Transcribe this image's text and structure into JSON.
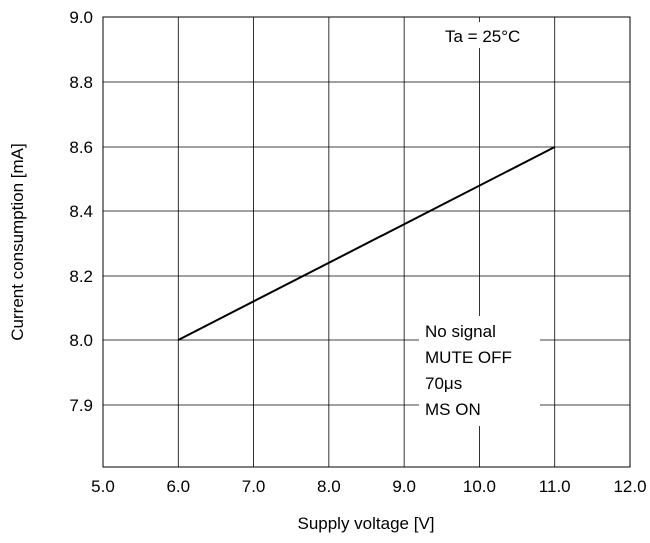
{
  "chart_data": {
    "type": "line",
    "xlabel": "Supply voltage [V]",
    "ylabel": "Current consumption [mA]",
    "xlim": [
      5.0,
      12.0
    ],
    "x_ticks": [
      "5.0",
      "6.0",
      "7.0",
      "8.0",
      "9.0",
      "10.0",
      "11.0",
      "12.0"
    ],
    "y_ticks": [
      "9.0",
      "8.8",
      "8.6",
      "8.4",
      "8.2",
      "8.0",
      "7.9"
    ],
    "grid": true,
    "series": [
      {
        "x": [
          6.0,
          11.0
        ],
        "y": [
          8.0,
          8.6
        ]
      }
    ],
    "annotations": {
      "temperature": "Ta = 25°C",
      "conditions": [
        "No signal",
        "MUTE OFF",
        "70μs",
        "MS ON"
      ]
    }
  }
}
